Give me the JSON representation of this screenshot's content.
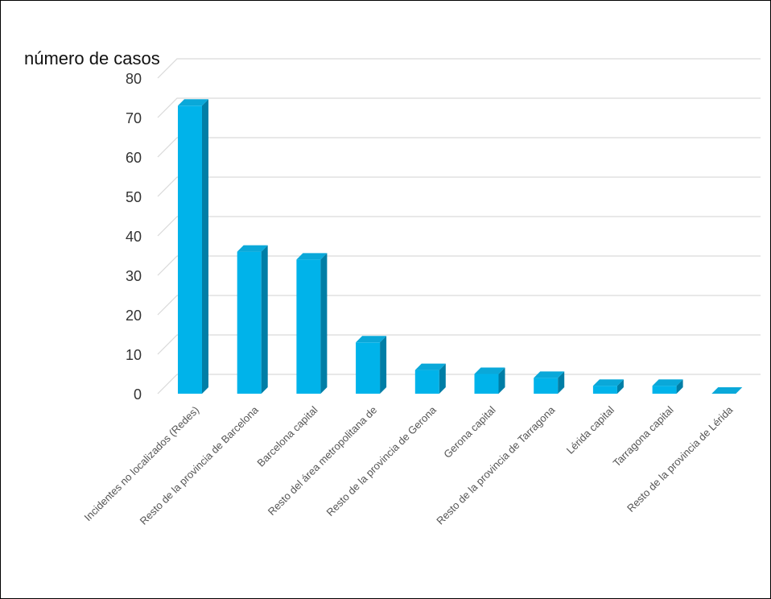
{
  "chart_data": {
    "type": "bar",
    "ylabel": "número de casos",
    "xlabel": "",
    "ylim": [
      0,
      80
    ],
    "yticks": [
      0,
      10,
      20,
      30,
      40,
      50,
      60,
      70,
      80
    ],
    "grid": true,
    "three_d": true,
    "categories": [
      "Incidentes no localizados (Redes)",
      "Resto de la provincia de Barcelona",
      "Barcelona capital",
      "Resto del área metropolitana de",
      "Resto de la provincia de Gerona",
      "Gerona capital",
      "Resto de la provincia de Tarragona",
      "Lérida capital",
      "Tarragona capital",
      "Resto de la provincia de Lérida"
    ],
    "values": [
      73,
      36,
      34,
      13,
      6,
      5,
      4,
      2,
      2,
      0
    ],
    "colors": {
      "front": "#00b3ea",
      "top": "#0aa8d9",
      "side": "#007ea6",
      "grid": "#d9d9d9"
    }
  }
}
